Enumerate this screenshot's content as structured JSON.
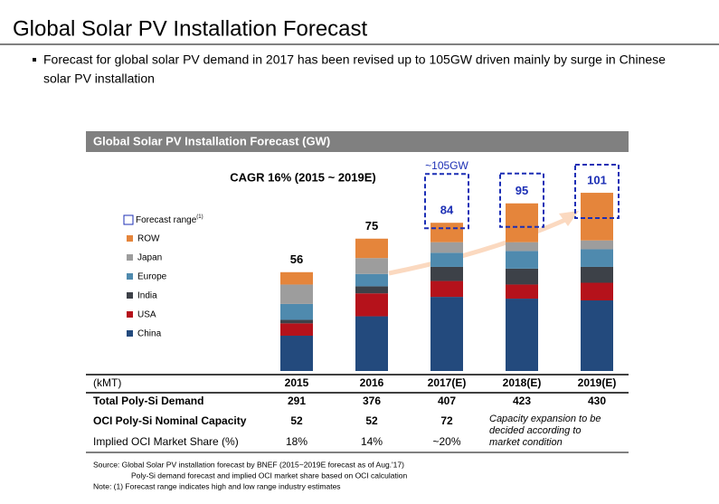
{
  "header": {
    "title": "Global Solar PV Installation Forecast",
    "bullet": [
      "Forecast for global solar PV demand in 2017 has been revised up to 105GW driven mainly by surge in Chinese",
      "solar PV installation"
    ]
  },
  "chart_data": {
    "type": "bar",
    "stacked": true,
    "title": "Global Solar PV Installation Forecast (GW)",
    "annotations": [
      "CAGR 16% (2015 ~ 2019E)",
      "~105GW"
    ],
    "categories": [
      "2015",
      "2016",
      "2017(E)",
      "2018(E)",
      "2019(E)"
    ],
    "ylim": [
      0,
      120
    ],
    "series": [
      {
        "name": "China",
        "color": "#234a7d",
        "values": [
          20,
          31,
          42,
          41,
          40
        ]
      },
      {
        "name": "USA",
        "color": "#b5121b",
        "values": [
          7,
          13,
          9,
          8,
          10
        ]
      },
      {
        "name": "India",
        "color": "#3d4148",
        "values": [
          2,
          4,
          8,
          9,
          9
        ]
      },
      {
        "name": "Europe",
        "color": "#4f8aae",
        "values": [
          9,
          7,
          8,
          10,
          10
        ]
      },
      {
        "name": "Japan",
        "color": "#9d9d9d",
        "values": [
          11,
          9,
          6,
          5,
          5
        ]
      },
      {
        "name": "ROW",
        "color": "#e5853b",
        "values": [
          7,
          11,
          11,
          22,
          27
        ]
      }
    ],
    "totals": [
      56,
      75,
      84,
      95,
      101
    ],
    "forecast": [
      false,
      false,
      true,
      true,
      true
    ],
    "forecast_legend": "Forecast range",
    "forecast_legend_note": "(1)",
    "forecast_color": "#1c2fb5"
  },
  "table": {
    "header": [
      "(kMT)",
      "2015",
      "2016",
      "2017(E)",
      "2018(E)",
      "2019(E)"
    ],
    "rows": [
      [
        "Total Poly-Si Demand",
        "291",
        "376",
        "407",
        "423",
        "430"
      ],
      [
        "OCI Poly-Si Nominal Capacity",
        "52",
        "52",
        "72"
      ],
      [
        "Implied OCI Market Share (%)",
        "18%",
        "14%",
        "~20%"
      ]
    ],
    "capacity_note": [
      "Capacity expansion to be",
      "decided according to",
      "market condition"
    ]
  },
  "notes": [
    "Source: Global Solar PV installation forecast by BNEF (2015~2019E forecast as of Aug.'17)",
    "Poly-Si demand forecast and implied OCI market share based on OCI calculation",
    "Note: (1) Forecast range indicates high and low range industry estimates"
  ]
}
